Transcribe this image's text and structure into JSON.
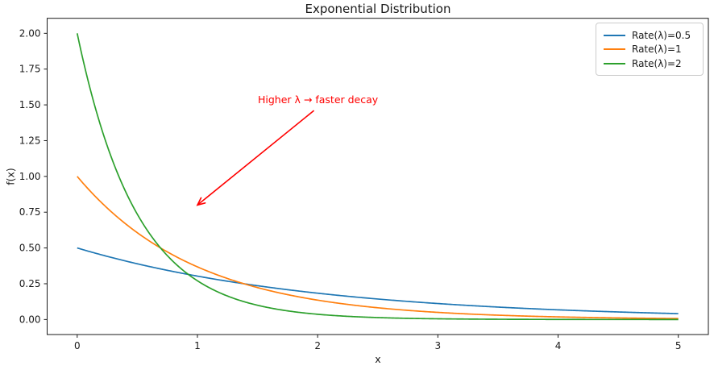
{
  "figure": {
    "title": "Exponential Distribution"
  },
  "chart_data": {
    "type": "line",
    "title": "Exponential Distribution",
    "xlabel": "x",
    "ylabel": "f(x)",
    "xlim": [
      -0.25,
      5.25
    ],
    "ylim": [
      -0.105,
      2.105
    ],
    "grid": false,
    "xticks": {
      "values": [
        0,
        1,
        2,
        3,
        4,
        5
      ],
      "labels": [
        "0",
        "1",
        "2",
        "3",
        "4",
        "5"
      ]
    },
    "yticks": {
      "values": [
        0,
        0.25,
        0.5,
        0.75,
        1.0,
        1.25,
        1.5,
        1.75,
        2.0
      ],
      "labels": [
        "0.00",
        "0.25",
        "0.50",
        "0.75",
        "1.00",
        "1.25",
        "1.50",
        "1.75",
        "2.00"
      ]
    },
    "legend": {
      "position": "upper right"
    },
    "series": [
      {
        "name": "Rate(λ)=0.5",
        "color": "#1f77b4",
        "rate": 0.5,
        "x": [
          0,
          0.5,
          1,
          1.5,
          2,
          2.5,
          3,
          3.5,
          4,
          4.5,
          5
        ],
        "y": [
          0.5,
          0.3894,
          0.3033,
          0.2362,
          0.1839,
          0.1433,
          0.1116,
          0.0869,
          0.0677,
          0.0527,
          0.041
        ]
      },
      {
        "name": "Rate(λ)=1",
        "color": "#ff7f0e",
        "rate": 1,
        "x": [
          0,
          0.5,
          1,
          1.5,
          2,
          2.5,
          3,
          3.5,
          4,
          4.5,
          5
        ],
        "y": [
          1.0,
          0.6065,
          0.3679,
          0.2231,
          0.1353,
          0.0821,
          0.0498,
          0.0302,
          0.0183,
          0.0111,
          0.0067
        ]
      },
      {
        "name": "Rate(λ)=2",
        "color": "#2ca02c",
        "rate": 2,
        "x": [
          0,
          0.5,
          1,
          1.5,
          2,
          2.5,
          3,
          3.5,
          4,
          4.5,
          5
        ],
        "y": [
          2.0,
          0.7358,
          0.2707,
          0.0996,
          0.0366,
          0.0135,
          0.005,
          0.0018,
          0.0007,
          0.0002,
          0.0001
        ]
      }
    ],
    "annotation": {
      "text": "Higher λ → faster decay",
      "color": "#ff0000",
      "text_xy": [
        1.5,
        1.5
      ],
      "arrow_xy": [
        1.0,
        0.8
      ]
    }
  },
  "colors": {
    "background": "#ffffff",
    "axis": "#1a1a1a",
    "legend_border": "#cccccc"
  }
}
